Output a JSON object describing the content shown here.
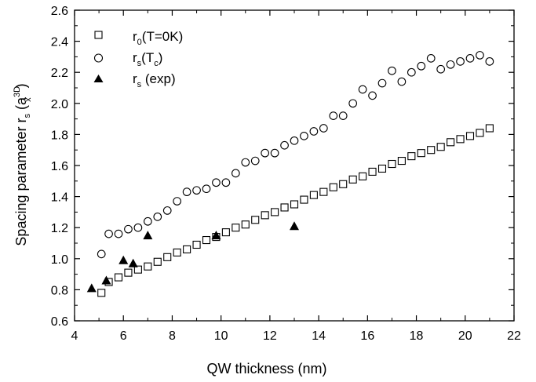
{
  "chart_data": {
    "type": "scatter",
    "xlabel": "QW thickness (nm)",
    "ylabel": {
      "main": "Spacing parameter r",
      "sub": "s",
      "paren_open": " (a",
      "sup": "3D",
      "sub2": "x",
      "paren_close": ")"
    },
    "xlim": [
      4,
      22
    ],
    "ylim": [
      0.6,
      2.6
    ],
    "xticks": [
      "4",
      "6",
      "8",
      "10",
      "12",
      "14",
      "16",
      "18",
      "20",
      "22"
    ],
    "yticks": [
      "0.6",
      "0.8",
      "1.0",
      "1.2",
      "1.4",
      "1.6",
      "1.8",
      "2.0",
      "2.2",
      "2.4",
      "2.6"
    ],
    "grid": false,
    "legend_position": "top-left",
    "series": [
      {
        "id": "r0",
        "legend": {
          "main": "r",
          "sub": "0",
          "rest": "(T=0K)"
        },
        "marker": "square-open",
        "points": [
          [
            5.1,
            0.78
          ],
          [
            5.4,
            0.85
          ],
          [
            5.8,
            0.88
          ],
          [
            6.2,
            0.91
          ],
          [
            6.6,
            0.93
          ],
          [
            7.0,
            0.95
          ],
          [
            7.4,
            0.98
          ],
          [
            7.8,
            1.01
          ],
          [
            8.2,
            1.04
          ],
          [
            8.6,
            1.06
          ],
          [
            9.0,
            1.09
          ],
          [
            9.4,
            1.12
          ],
          [
            9.8,
            1.14
          ],
          [
            10.2,
            1.17
          ],
          [
            10.6,
            1.2
          ],
          [
            11.0,
            1.22
          ],
          [
            11.4,
            1.25
          ],
          [
            11.8,
            1.28
          ],
          [
            12.2,
            1.3
          ],
          [
            12.6,
            1.33
          ],
          [
            13.0,
            1.35
          ],
          [
            13.4,
            1.38
          ],
          [
            13.8,
            1.41
          ],
          [
            14.2,
            1.43
          ],
          [
            14.6,
            1.46
          ],
          [
            15.0,
            1.48
          ],
          [
            15.4,
            1.51
          ],
          [
            15.8,
            1.53
          ],
          [
            16.2,
            1.56
          ],
          [
            16.6,
            1.58
          ],
          [
            17.0,
            1.61
          ],
          [
            17.4,
            1.63
          ],
          [
            17.8,
            1.66
          ],
          [
            18.2,
            1.68
          ],
          [
            18.6,
            1.7
          ],
          [
            19.0,
            1.72
          ],
          [
            19.4,
            1.75
          ],
          [
            19.8,
            1.77
          ],
          [
            20.2,
            1.79
          ],
          [
            20.6,
            1.81
          ],
          [
            21.0,
            1.84
          ]
        ]
      },
      {
        "id": "rs_tc",
        "legend": {
          "main": "r",
          "sub": "s",
          "rest": "(T",
          "sub2": "c",
          "rest2": ")"
        },
        "marker": "circle-open",
        "points": [
          [
            5.1,
            1.03
          ],
          [
            5.4,
            1.16
          ],
          [
            5.8,
            1.16
          ],
          [
            6.2,
            1.19
          ],
          [
            6.6,
            1.2
          ],
          [
            7.0,
            1.24
          ],
          [
            7.4,
            1.27
          ],
          [
            7.8,
            1.31
          ],
          [
            8.2,
            1.37
          ],
          [
            8.6,
            1.43
          ],
          [
            9.0,
            1.44
          ],
          [
            9.4,
            1.45
          ],
          [
            9.8,
            1.49
          ],
          [
            10.2,
            1.49
          ],
          [
            10.6,
            1.55
          ],
          [
            11.0,
            1.62
          ],
          [
            11.4,
            1.63
          ],
          [
            11.8,
            1.68
          ],
          [
            12.2,
            1.68
          ],
          [
            12.6,
            1.73
          ],
          [
            13.0,
            1.76
          ],
          [
            13.4,
            1.79
          ],
          [
            13.8,
            1.82
          ],
          [
            14.2,
            1.84
          ],
          [
            14.6,
            1.92
          ],
          [
            15.0,
            1.92
          ],
          [
            15.4,
            2.0
          ],
          [
            15.8,
            2.09
          ],
          [
            16.2,
            2.05
          ],
          [
            16.6,
            2.13
          ],
          [
            17.0,
            2.21
          ],
          [
            17.4,
            2.14
          ],
          [
            17.8,
            2.2
          ],
          [
            18.2,
            2.24
          ],
          [
            18.6,
            2.29
          ],
          [
            19.0,
            2.22
          ],
          [
            19.4,
            2.25
          ],
          [
            19.8,
            2.27
          ],
          [
            20.2,
            2.29
          ],
          [
            20.6,
            2.31
          ],
          [
            21.0,
            2.27
          ]
        ]
      },
      {
        "id": "rs_exp",
        "legend": {
          "main": "r",
          "sub": "s",
          "rest": " (exp)"
        },
        "marker": "triangle-filled",
        "points": [
          [
            4.7,
            0.81
          ],
          [
            5.3,
            0.86
          ],
          [
            6.0,
            0.99
          ],
          [
            6.4,
            0.97
          ],
          [
            7.0,
            1.15
          ],
          [
            9.8,
            1.15
          ],
          [
            13.0,
            1.21
          ]
        ]
      }
    ]
  }
}
